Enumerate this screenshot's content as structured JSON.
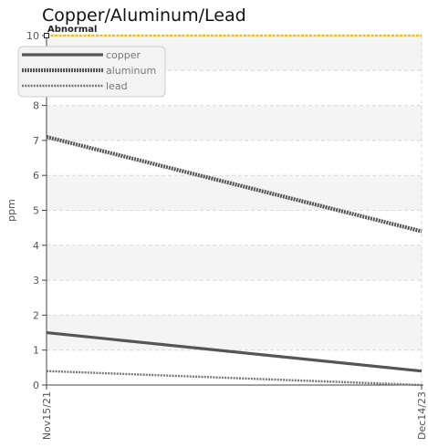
{
  "chart_data": {
    "type": "line",
    "title": "Copper/Aluminum/Lead",
    "xlabel": "",
    "ylabel": "ppm",
    "x": [
      "Nov15/21",
      "Dec14/23"
    ],
    "ylim": [
      0,
      10
    ],
    "yticks": [
      "0",
      "1",
      "2",
      "3",
      "4",
      "5",
      "6",
      "7",
      "8",
      "9",
      "10"
    ],
    "grid": true,
    "legend_position": "top-left",
    "series": [
      {
        "name": "copper",
        "values": [
          1.5,
          0.4
        ],
        "color": "#555555",
        "style": "solid"
      },
      {
        "name": "aluminum",
        "values": [
          7.1,
          4.4
        ],
        "color": "#555555",
        "style": "dotted-thick"
      },
      {
        "name": "lead",
        "values": [
          0.4,
          0.0
        ],
        "color": "#777777",
        "style": "dotted-thin"
      }
    ],
    "threshold": {
      "label": "Abnormal",
      "value": 10,
      "color": "#f2c200"
    }
  }
}
